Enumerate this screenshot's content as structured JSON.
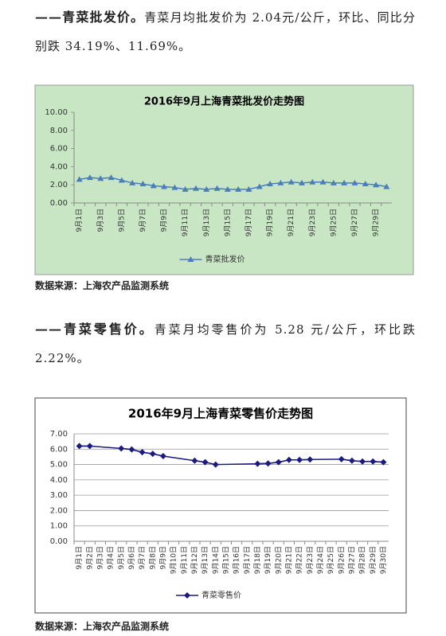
{
  "document": {
    "sections": [
      {
        "lead": "——青菜批发价。",
        "body": "青菜月均批发价为 2.04元/公斤，环比、同比分别跌 34.19%、11.69%。",
        "source": "数据来源：上海农产品监测系统"
      },
      {
        "lead": "——青菜零售价。",
        "body": "青菜月均零售价为 5.28 元/公斤，环比跌 2.22%。",
        "source": "数据来源：上海农产品监测系统"
      }
    ]
  },
  "chart_data": [
    {
      "type": "line",
      "title": "2016年9月上海青菜批发价走势图",
      "categories": [
        "9月1日",
        null,
        "9月3日",
        null,
        "9月5日",
        null,
        "9月7日",
        null,
        "9月9日",
        null,
        "9月11日",
        null,
        "9月13日",
        null,
        "9月15日",
        null,
        "9月17日",
        null,
        "9月19日",
        null,
        "9月21日",
        null,
        "9月23日",
        null,
        "9月25日",
        null,
        "9月27日",
        null,
        "9月29日",
        null
      ],
      "series": [
        {
          "name": "青菜批发价",
          "color": "#4a7ebb",
          "marker": "triangle",
          "values": [
            2.6,
            2.8,
            2.7,
            2.8,
            2.5,
            2.2,
            2.1,
            1.9,
            1.8,
            1.7,
            1.5,
            1.6,
            1.5,
            1.6,
            1.5,
            1.5,
            1.5,
            1.8,
            2.1,
            2.2,
            2.3,
            2.2,
            2.3,
            2.3,
            2.2,
            2.2,
            2.2,
            2.1,
            2.0,
            1.8
          ]
        }
      ],
      "ylim": [
        0,
        10
      ],
      "yticks": [
        {
          "value": 0,
          "label": "0.00"
        },
        {
          "value": 2,
          "label": "2.00"
        },
        {
          "value": 4,
          "label": "4.00"
        },
        {
          "value": 6,
          "label": "6.00"
        },
        {
          "value": 8,
          "label": "8.00"
        },
        {
          "value": 10,
          "label": "10.00"
        }
      ],
      "grid": false,
      "legend": "bottom",
      "background": "#c8e6c4",
      "connect_gaps": false
    },
    {
      "type": "line",
      "title": "2016年9月上海青菜零售价走势图",
      "categories": [
        "9月1日",
        "9月2日",
        "9月3日",
        "9月4日",
        "9月5日",
        "9月6日",
        "9月7日",
        "9月8日",
        "9月9日",
        "9月10日",
        "9月11日",
        "9月12日",
        "9月13日",
        "9月14日",
        "9月15日",
        "9月16日",
        "9月17日",
        "9月18日",
        "9月19日",
        "9月20日",
        "9月21日",
        "9月22日",
        "9月23日",
        "9月24日",
        "9月25日",
        "9月26日",
        "9月27日",
        "9月28日",
        "9月29日",
        "9月30日"
      ],
      "series": [
        {
          "name": "青菜零售价",
          "color": "#1a1a80",
          "marker": "diamond",
          "values": [
            6.2,
            6.2,
            null,
            null,
            6.05,
            5.98,
            5.8,
            5.7,
            5.55,
            null,
            null,
            5.25,
            5.15,
            5.0,
            null,
            null,
            null,
            5.05,
            5.07,
            5.15,
            5.3,
            5.3,
            5.33,
            null,
            null,
            5.35,
            5.25,
            5.2,
            5.2,
            5.15
          ]
        }
      ],
      "ylim": [
        0,
        7
      ],
      "yticks": [
        {
          "value": 0,
          "label": "0.00"
        },
        {
          "value": 1,
          "label": "1.00"
        },
        {
          "value": 2,
          "label": "2.00"
        },
        {
          "value": 3,
          "label": "3.00"
        },
        {
          "value": 4,
          "label": "4.00"
        },
        {
          "value": 5,
          "label": "5.00"
        },
        {
          "value": 6,
          "label": "6.00"
        },
        {
          "value": 7,
          "label": "7.00"
        }
      ],
      "grid": true,
      "legend": "bottom",
      "background": "#ffffff",
      "connect_gaps": true
    }
  ]
}
